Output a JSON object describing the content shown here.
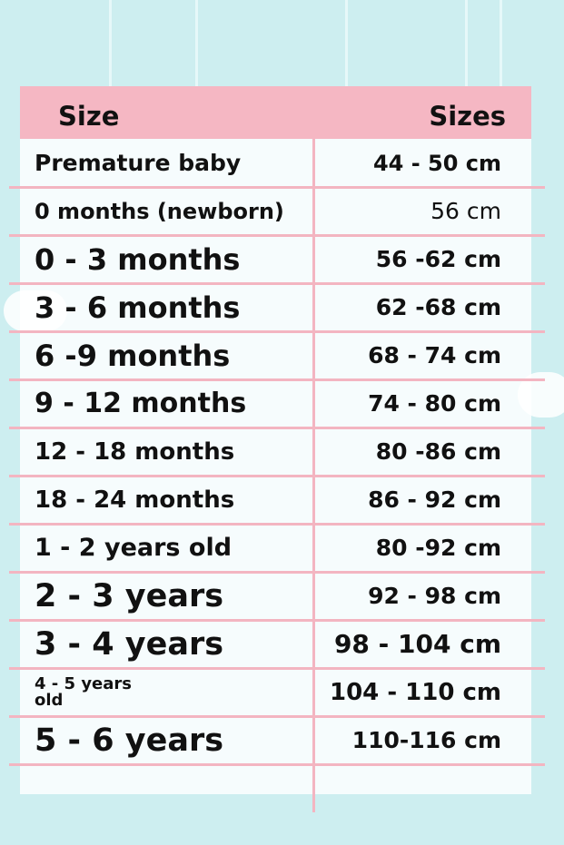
{
  "table": {
    "header": [
      "Size",
      "Sizes"
    ],
    "rows": [
      [
        "Premature baby",
        "44 - 50 cm"
      ],
      [
        "0 months (newborn)",
        "56 cm"
      ],
      [
        "0 - 3 months",
        "56 -62 cm"
      ],
      [
        "3 - 6 months",
        "62 -68 cm"
      ],
      [
        "6 -9 months",
        "68 - 74 cm"
      ],
      [
        "9 - 12 months",
        "74 - 80 cm"
      ],
      [
        "12 - 18 months",
        "80 -86 cm"
      ],
      [
        "18 - 24 months",
        "86 - 92 cm"
      ],
      [
        "1 - 2 years old",
        "80 -92 cm"
      ],
      [
        "2 - 3 years",
        "92 - 98 cm"
      ],
      [
        "3 - 4 years",
        "98 - 104 cm"
      ],
      [
        "4 - 5 years old",
        "104 - 110 cm"
      ],
      [
        "5 - 6 years",
        "110-116 cm"
      ]
    ]
  }
}
